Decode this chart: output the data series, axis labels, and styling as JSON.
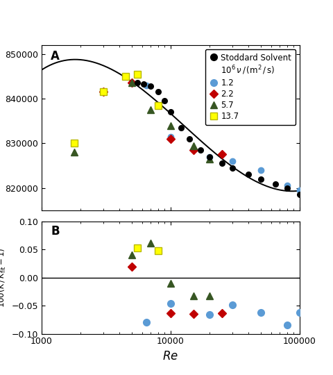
{
  "stoddard_Re": [
    5500,
    6200,
    7000,
    8000,
    9000,
    10000,
    12000,
    14000,
    17000,
    20000,
    25000,
    30000,
    40000,
    50000,
    65000,
    80000,
    100000
  ],
  "stoddard_K": [
    843500,
    843200,
    842800,
    841500,
    839500,
    837000,
    833500,
    831000,
    828500,
    827000,
    825500,
    824500,
    823000,
    822000,
    820800,
    820000,
    818500
  ],
  "blue_Re": [
    6500,
    10000,
    20000,
    30000,
    50000,
    80000,
    100000
  ],
  "blue_K": [
    843000,
    831500,
    827000,
    826000,
    824000,
    820500,
    819500
  ],
  "red_Re": [
    3000,
    5000,
    10000,
    15000,
    25000
  ],
  "red_K": [
    841500,
    843500,
    831000,
    828500,
    827500
  ],
  "green_Re": [
    1800,
    5000,
    7000,
    10000,
    15000,
    20000
  ],
  "green_K": [
    828000,
    843500,
    837500,
    834000,
    829500,
    826500
  ],
  "yellow_Re": [
    1800,
    3000,
    4500,
    5500,
    8000
  ],
  "yellow_K": [
    830000,
    841500,
    845000,
    845500,
    838500
  ],
  "blue_res_Re": [
    6500,
    10000,
    20000,
    30000,
    50000,
    80000,
    100000
  ],
  "blue_resid": [
    -0.08,
    -0.046,
    -0.066,
    -0.048,
    -0.062,
    -0.085,
    -0.062
  ],
  "red_res_Re": [
    5000,
    10000,
    15000,
    25000
  ],
  "red_resid": [
    0.02,
    -0.063,
    -0.065,
    -0.063
  ],
  "green_res_Re": [
    5000,
    7000,
    10000,
    15000,
    20000
  ],
  "green_resid": [
    0.04,
    0.062,
    -0.01,
    -0.033,
    -0.033
  ],
  "yellow_res_Re": [
    5500,
    8000
  ],
  "yellow_resid": [
    0.053,
    0.048
  ],
  "color_blue": "#5b9bd5",
  "color_red": "#c00000",
  "color_green": "#375623",
  "color_yellow": "#ffff00",
  "color_yellow_edge": "#b8b800",
  "xlim": [
    1000,
    100000
  ],
  "ylim_A_lo": 815000,
  "ylim_A_hi": 852000,
  "ylim_B_lo": -0.1,
  "ylim_B_hi": 0.1,
  "yticks_A": [
    820000,
    830000,
    840000,
    850000
  ],
  "yticks_B": [
    -0.1,
    -0.05,
    0.0,
    0.05,
    0.1
  ]
}
